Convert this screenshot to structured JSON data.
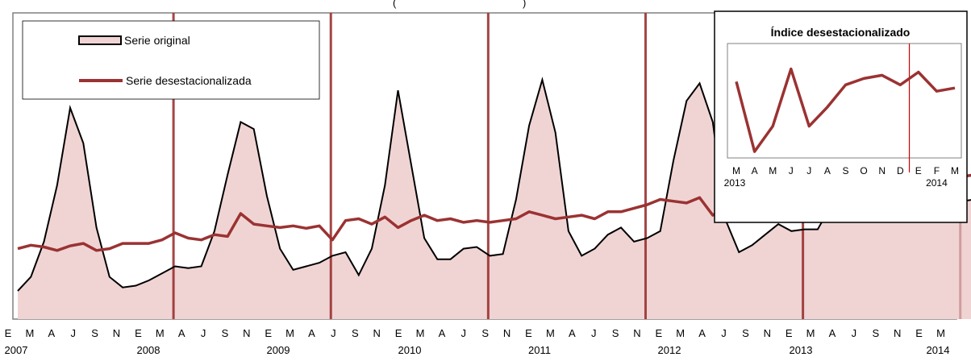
{
  "chart_data": [
    {
      "type": "area",
      "title_fragment": "(",
      "title_fragment_end": ")",
      "x_month_labels": [
        "E",
        "M",
        "A",
        "J",
        "S",
        "N",
        "E",
        "M",
        "A",
        "J",
        "S",
        "N",
        "E",
        "M",
        "A",
        "J",
        "S",
        "N",
        "E",
        "M",
        "A",
        "J",
        "S",
        "N",
        "E",
        "M",
        "A",
        "J",
        "S",
        "N",
        "E",
        "M",
        "A",
        "J",
        "S",
        "N",
        "E",
        "M",
        "A",
        "J",
        "S",
        "N",
        "E",
        "M"
      ],
      "year_labels": [
        "2007",
        "2008",
        "2009",
        "2010",
        "2011",
        "2012",
        "2013",
        "2014"
      ],
      "grid": false,
      "legend_position": "top-left",
      "colors": {
        "area_fill": "#f0d4d4",
        "original_line": "#000000",
        "deseasonalized": "#9b3232",
        "year_marker": "#9b3232",
        "frame": "#808080"
      },
      "x_range": [
        "2007-01",
        "2014-05"
      ],
      "series": [
        {
          "name": "Serie original",
          "style": "area",
          "values": [
            8,
            12,
            22,
            38,
            60,
            50,
            26,
            12,
            9,
            9.5,
            11,
            13,
            15,
            14.5,
            15,
            25,
            41,
            56,
            54,
            35,
            20,
            14,
            15,
            16,
            18,
            19,
            12.5,
            20,
            38,
            65,
            44,
            23,
            17,
            17,
            20,
            20.5,
            18,
            18.5,
            34,
            55,
            68,
            53,
            25,
            18,
            20,
            24,
            26,
            22,
            23,
            25,
            45,
            62,
            67,
            56,
            28,
            19,
            21,
            24,
            27,
            25,
            25.5,
            25.5,
            32,
            58,
            79,
            61,
            33,
            28,
            30,
            32,
            35,
            33,
            33.5,
            34,
            48,
            72,
            80,
            64,
            37,
            30,
            35,
            38,
            36,
            34,
            35
          ]
        },
        {
          "name": "Serie desestacionalizada",
          "style": "line",
          "values": [
            20,
            21,
            20.5,
            19.5,
            20.8,
            21.5,
            19.5,
            20,
            21.5,
            21.5,
            21.5,
            22.5,
            24.5,
            23,
            22.5,
            24,
            23.5,
            30,
            27,
            26.5,
            26,
            26.5,
            25.8,
            26.5,
            22.5,
            28,
            28.5,
            27,
            29,
            26,
            28,
            29.5,
            28,
            28.5,
            27.5,
            28,
            27.5,
            28,
            28.5,
            30.5,
            29.5,
            28.5,
            29,
            29.5,
            28.5,
            30.5,
            30.5,
            31.5,
            32.5,
            34,
            33.5,
            33,
            34.5,
            29.5,
            31.5,
            39,
            33.5,
            33,
            34,
            35.5,
            31,
            36,
            36,
            35,
            35.5,
            40,
            41.5,
            40.5,
            41,
            40,
            41.5,
            41,
            40.5,
            41,
            41.5,
            42,
            42.5,
            42,
            43,
            42.5,
            43.5,
            43,
            42,
            43.5,
            43
          ]
        }
      ]
    },
    {
      "type": "line",
      "title": "Índice desestacionalizado",
      "categories": [
        "M",
        "A",
        "M",
        "J",
        "J",
        "A",
        "S",
        "O",
        "N",
        "D",
        "E",
        "F",
        "M"
      ],
      "year_labels": [
        "2013",
        "2014"
      ],
      "series": [
        {
          "name": "",
          "values": [
            49,
            38,
            42,
            51,
            42,
            45,
            48.5,
            49.5,
            50,
            48.5,
            50.5,
            47.5,
            48
          ]
        }
      ],
      "ylim": [
        37,
        55
      ],
      "marker_between": [
        "D",
        "E"
      ]
    }
  ]
}
